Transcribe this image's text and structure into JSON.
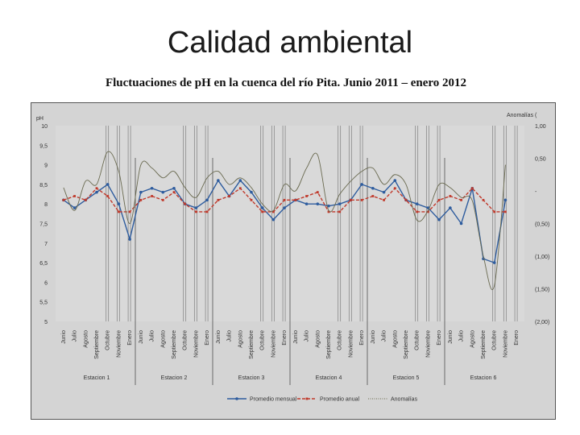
{
  "slide": {
    "title": "Calidad ambiental",
    "subtitle": "Fluctuaciones de pH en la cuenca del río Pita. Junio 2011 – enero 2012"
  },
  "chart_data": {
    "type": "line",
    "ylabel": "pH",
    "y2label": "Anomalías (",
    "ylim": [
      5,
      10
    ],
    "yticks": [
      "5",
      "5,5",
      "6",
      "6,5",
      "7",
      "7,5",
      "8",
      "8,5",
      "9",
      "9,5",
      "10"
    ],
    "y2lim": [
      -2,
      1
    ],
    "y2ticks": [
      "(2,00)",
      "(1,50)",
      "(1,00)",
      "(0,50)",
      "-",
      "0,50",
      "1,00"
    ],
    "months": [
      "Junio",
      "Julio",
      "Agosto",
      "Septiembre",
      "Octubre",
      "Noviembre",
      "Enero"
    ],
    "stations": [
      "Estacion 1",
      "Estacion 2",
      "Estacion 3",
      "Estacion 4",
      "Estacion 5",
      "Estacion 6"
    ],
    "legend_position": "bottom",
    "series": [
      {
        "name": "Promedio mensual",
        "axis": "left",
        "color": "#2e5c9e",
        "values": [
          8.1,
          7.9,
          8.1,
          8.3,
          8.5,
          8.0,
          7.1,
          8.3,
          8.4,
          8.3,
          8.4,
          8.0,
          7.9,
          8.1,
          8.6,
          8.2,
          8.6,
          8.3,
          7.9,
          7.6,
          7.9,
          8.1,
          8.0,
          8.0,
          7.95,
          8.0,
          8.1,
          8.5,
          8.4,
          8.3,
          8.6,
          8.1,
          8.0,
          7.9,
          7.6,
          7.9,
          7.5,
          8.4,
          6.6,
          6.5,
          8.1
        ]
      },
      {
        "name": "Promedio anual",
        "axis": "left",
        "color": "#c0392b",
        "values": [
          8.1,
          8.2,
          8.1,
          8.4,
          8.2,
          7.8,
          7.8,
          8.1,
          8.2,
          8.1,
          8.3,
          8.0,
          7.8,
          7.8,
          8.1,
          8.2,
          8.4,
          8.1,
          7.8,
          7.8,
          8.1,
          8.1,
          8.2,
          8.3,
          7.8,
          7.8,
          8.1,
          8.1,
          8.2,
          8.1,
          8.4,
          8.1,
          7.8,
          7.8,
          8.1,
          8.2,
          8.1,
          8.4,
          8.1,
          7.8,
          7.8
        ]
      },
      {
        "name": "Anomalías",
        "axis": "right",
        "color": "#6a6a50",
        "values": [
          0.05,
          -0.3,
          0.15,
          0.1,
          0.6,
          0.3,
          -0.5,
          0.4,
          0.35,
          0.2,
          0.3,
          0.05,
          -0.1,
          0.2,
          0.3,
          0.1,
          0.2,
          0.05,
          -0.2,
          -0.3,
          0.1,
          0.0,
          0.35,
          0.55,
          -0.3,
          -0.05,
          0.15,
          0.3,
          0.35,
          0.1,
          0.25,
          0.1,
          -0.45,
          -0.3,
          0.1,
          0.05,
          -0.1,
          -0.15,
          -1.0,
          -1.45,
          0.4
        ]
      }
    ]
  }
}
